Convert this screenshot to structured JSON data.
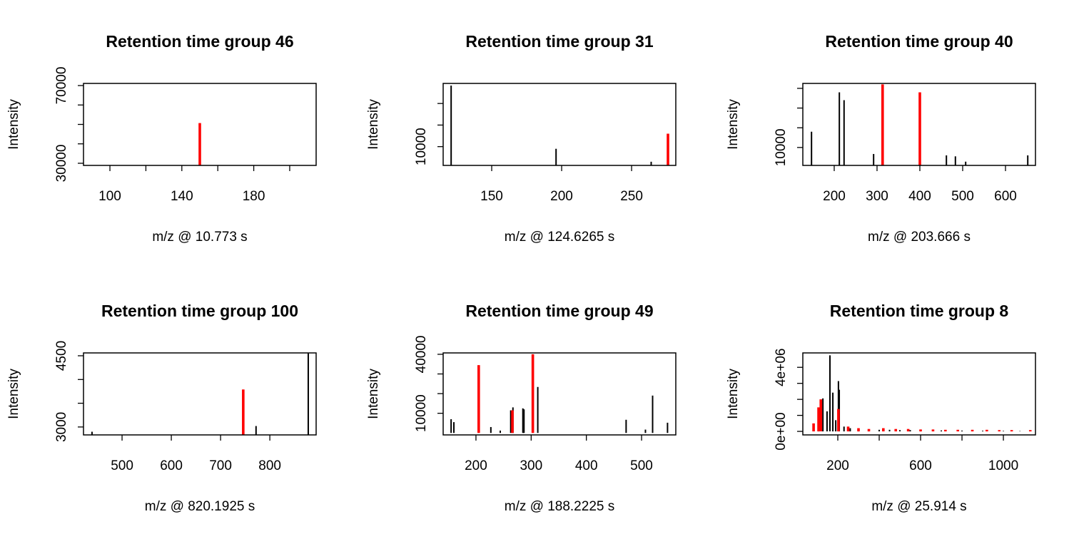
{
  "chart_data": [
    {
      "type": "spike",
      "title": "Retention time group 46",
      "xlabel": "m/z @ 10.773 s",
      "ylabel": "Intensity",
      "xlim": [
        85.3,
        214.7
      ],
      "xticks": [
        100,
        140,
        180
      ],
      "xminorticks": [
        120,
        160,
        200
      ],
      "ylim": [
        28900,
        71100
      ],
      "yticks": [
        30000,
        70000
      ],
      "yminorticks": [
        40000,
        50000,
        60000
      ],
      "series": [
        {
          "color": "#ff0000",
          "x": [
            150
          ],
          "values": [
            50700
          ]
        }
      ]
    },
    {
      "type": "spike",
      "title": "Retention time group 31",
      "xlabel": "m/z @ 124.6265 s",
      "ylabel": "Intensity",
      "xlim": [
        115.3,
        281.6
      ],
      "xticks": [
        150,
        200,
        250
      ],
      "ylim": [
        1300,
        39300
      ],
      "yticks": [
        10000
      ],
      "yminorticks": [
        20000,
        30000
      ],
      "series": [
        {
          "color": "#000000",
          "x": [
            121,
            196,
            264
          ],
          "values": [
            38300,
            9000,
            3000
          ]
        },
        {
          "color": "#ff0000",
          "x": [
            276
          ],
          "values": [
            16000
          ]
        }
      ]
    },
    {
      "type": "spike",
      "title": "Retention time group 40",
      "xlabel": "m/z @ 203.666 s",
      "ylabel": "Intensity",
      "xlim": [
        126.7,
        670
      ],
      "xticks": [
        200,
        300,
        400,
        500,
        600
      ],
      "ylim": [
        900,
        42500
      ],
      "yticks": [
        10000
      ],
      "yminorticks": [
        20000,
        30000,
        40000
      ],
      "series": [
        {
          "color": "#000000",
          "x": [
            147,
            212,
            223,
            292,
            462,
            483,
            507,
            652
          ],
          "values": [
            18000,
            38000,
            34000,
            6700,
            6000,
            5500,
            2800,
            6000
          ]
        },
        {
          "color": "#ff0000",
          "x": [
            313,
            400
          ],
          "values": [
            42000,
            38000
          ]
        }
      ]
    },
    {
      "type": "spike",
      "title": "Retention time group 100",
      "xlabel": "m/z @ 820.1925 s",
      "ylabel": "Intensity",
      "xlim": [
        421.7,
        894
      ],
      "xticks": [
        500,
        600,
        700,
        800
      ],
      "ylim": [
        2833,
        4560
      ],
      "yticks": [
        3000,
        4500
      ],
      "yminorticks": [
        3500,
        4000
      ],
      "series": [
        {
          "color": "#000000",
          "x": [
            439,
            772,
            878
          ],
          "values": [
            2900,
            3020,
            4550
          ]
        },
        {
          "color": "#ff0000",
          "x": [
            746
          ],
          "values": [
            3790
          ]
        }
      ]
    },
    {
      "type": "spike",
      "title": "Retention time group 49",
      "xlabel": "m/z @ 188.2225 s",
      "ylabel": "Intensity",
      "xlim": [
        140.6,
        562
      ],
      "xticks": [
        200,
        300,
        400,
        500
      ],
      "ylim": [
        -1000,
        40700
      ],
      "yticks": [
        10000,
        40000
      ],
      "yminorticks": [
        20000,
        30000
      ],
      "series": [
        {
          "color": "#000000",
          "x": [
            155,
            160,
            227,
            244,
            263,
            267,
            285,
            287,
            312,
            472,
            507,
            520,
            547
          ],
          "values": [
            7000,
            5500,
            3000,
            1200,
            11500,
            13000,
            12500,
            12000,
            23400,
            6700,
            1700,
            19000,
            5200
          ]
        },
        {
          "color": "#ff0000",
          "x": [
            205,
            266,
            303
          ],
          "values": [
            34500,
            11500,
            40000
          ]
        }
      ]
    },
    {
      "type": "spike",
      "title": "Retention time group 8",
      "xlabel": "m/z @ 25.914 s",
      "ylabel": "Intensity",
      "xlim": [
        31,
        1155
      ],
      "xticks": [
        200,
        600,
        1000
      ],
      "xminorticks": [
        400,
        800
      ],
      "ylim": [
        -220000,
        4900000
      ],
      "yticks": [
        {
          "value": 0,
          "label": "0e+00"
        },
        {
          "value": 4000000,
          "label": "4e+06"
        }
      ],
      "yminorticks": [
        1000000,
        2000000,
        3000000
      ],
      "series": [
        {
          "color": "#000000",
          "x": [
            107,
            128,
            148,
            162,
            176,
            190,
            203,
            207,
            230,
            260,
            300,
            350,
            400,
            450,
            500,
            550,
            600,
            700,
            800,
            900,
            1000,
            1080
          ],
          "values": [
            630000,
            2060000,
            1250000,
            4750000,
            2420000,
            700000,
            3140000,
            2600000,
            300000,
            200000,
            150000,
            120000,
            100000,
            100000,
            80000,
            80000,
            70000,
            60000,
            50000,
            40000,
            30000,
            20000
          ]
        },
        {
          "color": "#ff0000",
          "x": [
            83,
            107,
            118,
            203,
            250,
            300,
            350,
            420,
            480,
            540,
            600,
            660,
            720,
            780,
            850,
            920,
            980,
            1040,
            1130
          ],
          "values": [
            500000,
            1500000,
            2000000,
            1400000,
            300000,
            200000,
            150000,
            200000,
            150000,
            150000,
            120000,
            120000,
            100000,
            100000,
            100000,
            100000,
            80000,
            80000,
            80000
          ]
        }
      ]
    }
  ]
}
